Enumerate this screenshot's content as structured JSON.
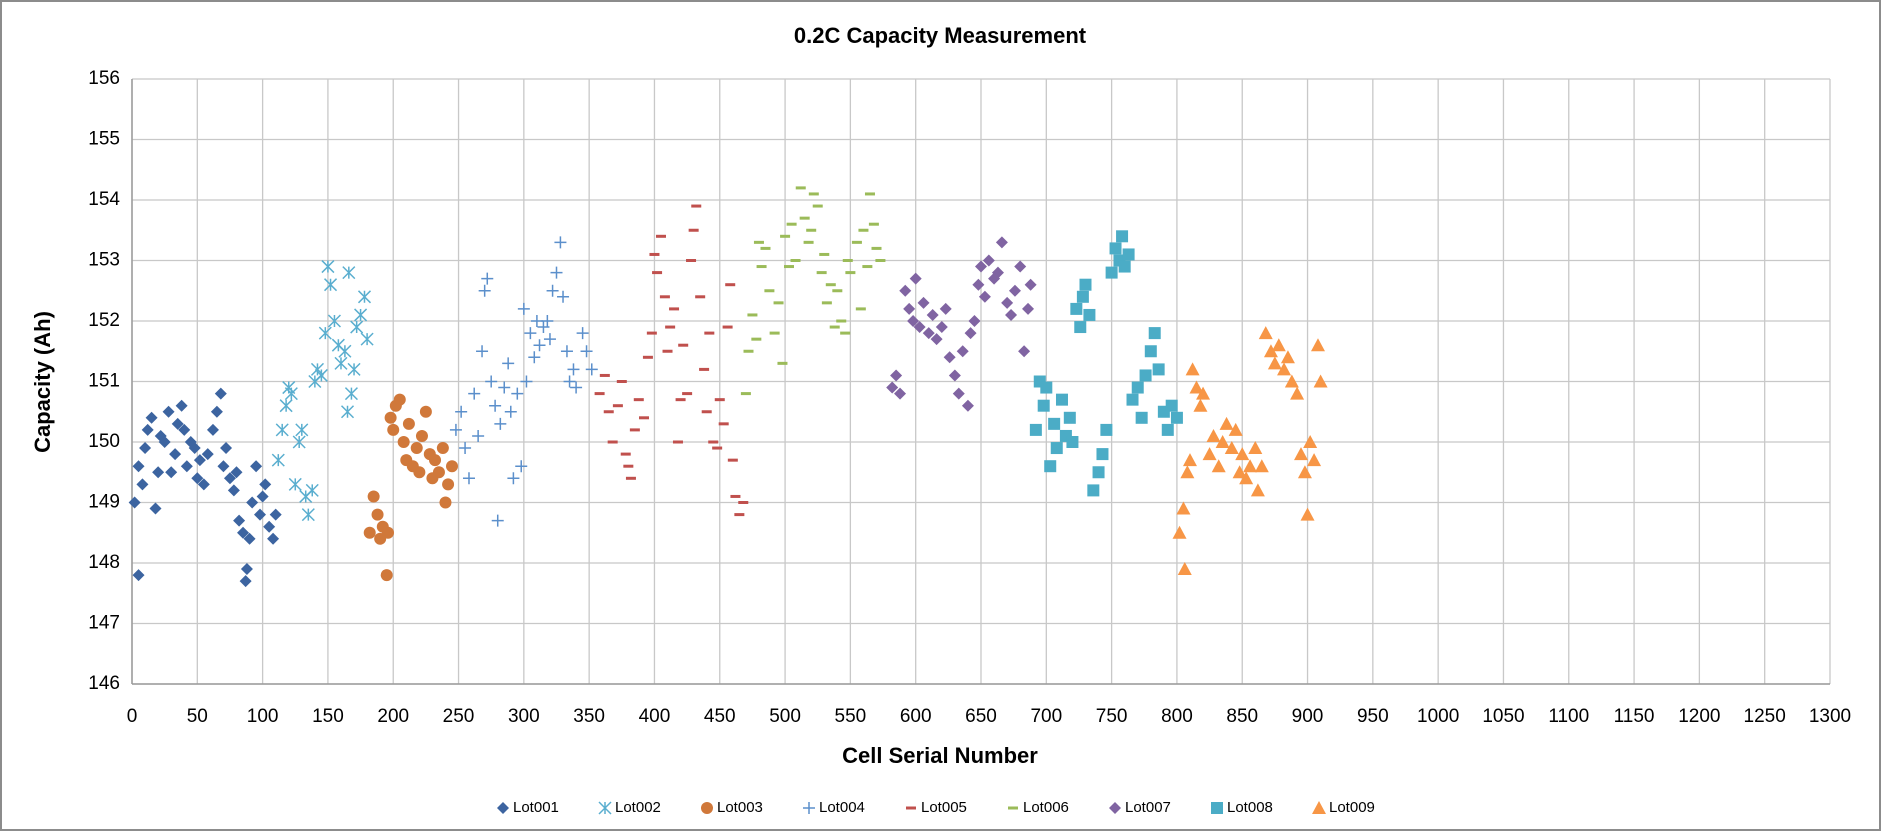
{
  "chart_data": {
    "type": "scatter",
    "title": "0.2C Capacity Measurement",
    "x_label": "Cell Serial Number",
    "y_label": "Capacity (Ah)",
    "xlim": [
      0,
      1300
    ],
    "xticks": [
      0,
      50,
      100,
      150,
      200,
      250,
      300,
      350,
      400,
      450,
      500,
      550,
      600,
      650,
      700,
      750,
      800,
      850,
      900,
      950,
      1000,
      1050,
      1100,
      1150,
      1200,
      1250,
      1300
    ],
    "ylim": [
      146,
      156
    ],
    "yticks": [
      146,
      147,
      148,
      149,
      150,
      151,
      152,
      153,
      154,
      155,
      156
    ],
    "grid": true,
    "legend": "bottom",
    "series": [
      {
        "name": "Lot001",
        "color": "#3c64a0",
        "marker": "diamond",
        "x": [
          2,
          5,
          5,
          8,
          10,
          12,
          15,
          18,
          20,
          22,
          25,
          28,
          30,
          33,
          35,
          38,
          40,
          42,
          45,
          48,
          50,
          52,
          55,
          58,
          62,
          65,
          68,
          70,
          72,
          75,
          78,
          80,
          82,
          85,
          87,
          88,
          90,
          92,
          95,
          98,
          100,
          102,
          105,
          108,
          110
        ],
        "values": [
          149.0,
          147.8,
          149.6,
          149.3,
          149.9,
          150.2,
          150.4,
          148.9,
          149.5,
          150.1,
          150.0,
          150.5,
          149.5,
          149.8,
          150.3,
          150.6,
          150.2,
          149.6,
          150.0,
          149.9,
          149.4,
          149.7,
          149.3,
          149.8,
          150.2,
          150.5,
          150.8,
          149.6,
          149.9,
          149.4,
          149.2,
          149.5,
          148.7,
          148.5,
          147.7,
          147.9,
          148.4,
          149.0,
          149.6,
          148.8,
          149.1,
          149.3,
          148.6,
          148.4,
          148.8
        ]
      },
      {
        "name": "Lot002",
        "color": "#5aaecf",
        "marker": "star",
        "x": [
          112,
          115,
          118,
          120,
          122,
          125,
          128,
          130,
          133,
          135,
          138,
          140,
          142,
          145,
          148,
          150,
          152,
          155,
          158,
          160,
          163,
          165,
          166,
          168,
          170,
          172,
          175,
          178,
          180
        ],
        "values": [
          149.7,
          150.2,
          150.6,
          150.9,
          150.8,
          149.3,
          150.0,
          150.2,
          149.1,
          148.8,
          149.2,
          151.0,
          151.2,
          151.1,
          151.8,
          152.9,
          152.6,
          152.0,
          151.6,
          151.3,
          151.5,
          150.5,
          152.8,
          150.8,
          151.2,
          151.9,
          152.1,
          152.4,
          151.7
        ]
      },
      {
        "name": "Lot003",
        "color": "#d0783a",
        "marker": "circle",
        "x": [
          182,
          185,
          188,
          190,
          192,
          195,
          196,
          198,
          200,
          202,
          205,
          208,
          210,
          212,
          215,
          218,
          220,
          222,
          225,
          228,
          230,
          232,
          235,
          238,
          240,
          242,
          245
        ],
        "values": [
          148.5,
          149.1,
          148.8,
          148.4,
          148.6,
          147.8,
          148.5,
          150.4,
          150.2,
          150.6,
          150.7,
          150.0,
          149.7,
          150.3,
          149.6,
          149.9,
          149.5,
          150.1,
          150.5,
          149.8,
          149.4,
          149.7,
          149.5,
          149.9,
          149.0,
          149.3,
          149.6
        ]
      },
      {
        "name": "Lot004",
        "color": "#5b8fcb",
        "marker": "plus",
        "x": [
          248,
          252,
          255,
          258,
          262,
          265,
          268,
          270,
          272,
          275,
          278,
          280,
          282,
          285,
          288,
          290,
          292,
          295,
          298,
          300,
          302,
          305,
          308,
          310,
          312,
          315,
          318,
          320,
          322,
          325,
          328,
          330,
          333,
          335,
          338,
          340,
          345,
          348,
          352
        ],
        "values": [
          150.2,
          150.5,
          149.9,
          149.4,
          150.8,
          150.1,
          151.5,
          152.5,
          152.7,
          151.0,
          150.6,
          148.7,
          150.3,
          150.9,
          151.3,
          150.5,
          149.4,
          150.8,
          149.6,
          152.2,
          151.0,
          151.8,
          151.4,
          152.0,
          151.6,
          151.9,
          152.0,
          151.7,
          152.5,
          152.8,
          153.3,
          152.4,
          151.5,
          151.0,
          151.2,
          150.9,
          151.8,
          151.5,
          151.2
        ]
      },
      {
        "name": "Lot005",
        "color": "#c0504d",
        "marker": "dash",
        "x": [
          358,
          362,
          365,
          368,
          372,
          375,
          378,
          380,
          382,
          385,
          388,
          392,
          395,
          398,
          400,
          402,
          405,
          408,
          410,
          412,
          415,
          418,
          420,
          422,
          425,
          428,
          430,
          432,
          435,
          438,
          440,
          442,
          445,
          448,
          450,
          453,
          456,
          458,
          460,
          462,
          465,
          468
        ],
        "values": [
          150.8,
          151.1,
          150.5,
          150.0,
          150.6,
          151.0,
          149.8,
          149.6,
          149.4,
          150.2,
          150.7,
          150.4,
          151.4,
          151.8,
          153.1,
          152.8,
          153.4,
          152.4,
          151.5,
          151.9,
          152.2,
          150.0,
          150.7,
          151.6,
          150.8,
          153.0,
          153.5,
          153.9,
          152.4,
          151.2,
          150.5,
          151.8,
          150.0,
          149.9,
          150.7,
          150.3,
          151.9,
          152.6,
          149.7,
          149.1,
          148.8,
          149.0
        ]
      },
      {
        "name": "Lot006",
        "color": "#9bbb59",
        "marker": "dash",
        "x": [
          470,
          472,
          475,
          478,
          480,
          482,
          485,
          488,
          492,
          495,
          498,
          500,
          503,
          505,
          508,
          512,
          515,
          518,
          520,
          522,
          525,
          528,
          530,
          532,
          535,
          538,
          540,
          543,
          546,
          548,
          550,
          555,
          558,
          560,
          563,
          565,
          568,
          570,
          573
        ],
        "values": [
          150.8,
          151.5,
          152.1,
          151.7,
          153.3,
          152.9,
          153.2,
          152.5,
          151.8,
          152.3,
          151.3,
          153.4,
          152.9,
          153.6,
          153.0,
          154.2,
          153.7,
          153.3,
          153.5,
          154.1,
          153.9,
          152.8,
          153.1,
          152.3,
          152.6,
          151.9,
          152.5,
          152.0,
          151.8,
          153.0,
          152.8,
          153.3,
          152.2,
          153.5,
          152.9,
          154.1,
          153.6,
          153.2,
          153.0
        ]
      },
      {
        "name": "Lot007",
        "color": "#8064a2",
        "marker": "diamond",
        "x": [
          582,
          585,
          588,
          592,
          595,
          598,
          600,
          603,
          606,
          610,
          613,
          616,
          620,
          623,
          626,
          630,
          633,
          636,
          640,
          642,
          645,
          648,
          650,
          653,
          656,
          660,
          663,
          666,
          670,
          673,
          676,
          680,
          683,
          686,
          688
        ],
        "values": [
          150.9,
          151.1,
          150.8,
          152.5,
          152.2,
          152.0,
          152.7,
          151.9,
          152.3,
          151.8,
          152.1,
          151.7,
          151.9,
          152.2,
          151.4,
          151.1,
          150.8,
          151.5,
          150.6,
          151.8,
          152.0,
          152.6,
          152.9,
          152.4,
          153.0,
          152.7,
          152.8,
          153.3,
          152.3,
          152.1,
          152.5,
          152.9,
          151.5,
          152.2,
          152.6
        ]
      },
      {
        "name": "Lot008",
        "color": "#4bacc6",
        "marker": "square",
        "x": [
          692,
          695,
          698,
          700,
          703,
          706,
          708,
          712,
          715,
          718,
          720,
          723,
          726,
          728,
          730,
          733,
          736,
          740,
          743,
          746,
          750,
          753,
          756,
          758,
          760,
          763,
          766,
          770,
          773,
          776,
          780,
          783,
          786,
          790,
          793,
          796,
          800
        ],
        "values": [
          150.2,
          151.0,
          150.6,
          150.9,
          149.6,
          150.3,
          149.9,
          150.7,
          150.1,
          150.4,
          150.0,
          152.2,
          151.9,
          152.4,
          152.6,
          152.1,
          149.2,
          149.5,
          149.8,
          150.2,
          152.8,
          153.2,
          153.0,
          153.4,
          152.9,
          153.1,
          150.7,
          150.9,
          150.4,
          151.1,
          151.5,
          151.8,
          151.2,
          150.5,
          150.2,
          150.6,
          150.4
        ]
      },
      {
        "name": "Lot009",
        "color": "#f79646",
        "marker": "triangle",
        "x": [
          802,
          805,
          806,
          808,
          810,
          812,
          815,
          818,
          820,
          825,
          828,
          832,
          835,
          838,
          842,
          845,
          848,
          850,
          853,
          856,
          860,
          862,
          865,
          868,
          872,
          875,
          878,
          882,
          885,
          888,
          892,
          895,
          898,
          900,
          902,
          905,
          908,
          910
        ],
        "values": [
          148.5,
          148.9,
          147.9,
          149.5,
          149.7,
          151.2,
          150.9,
          150.6,
          150.8,
          149.8,
          150.1,
          149.6,
          150.0,
          150.3,
          149.9,
          150.2,
          149.5,
          149.8,
          149.4,
          149.6,
          149.9,
          149.2,
          149.6,
          151.8,
          151.5,
          151.3,
          151.6,
          151.2,
          151.4,
          151.0,
          150.8,
          149.8,
          149.5,
          148.8,
          150.0,
          149.7,
          151.6,
          151.0
        ]
      }
    ]
  }
}
